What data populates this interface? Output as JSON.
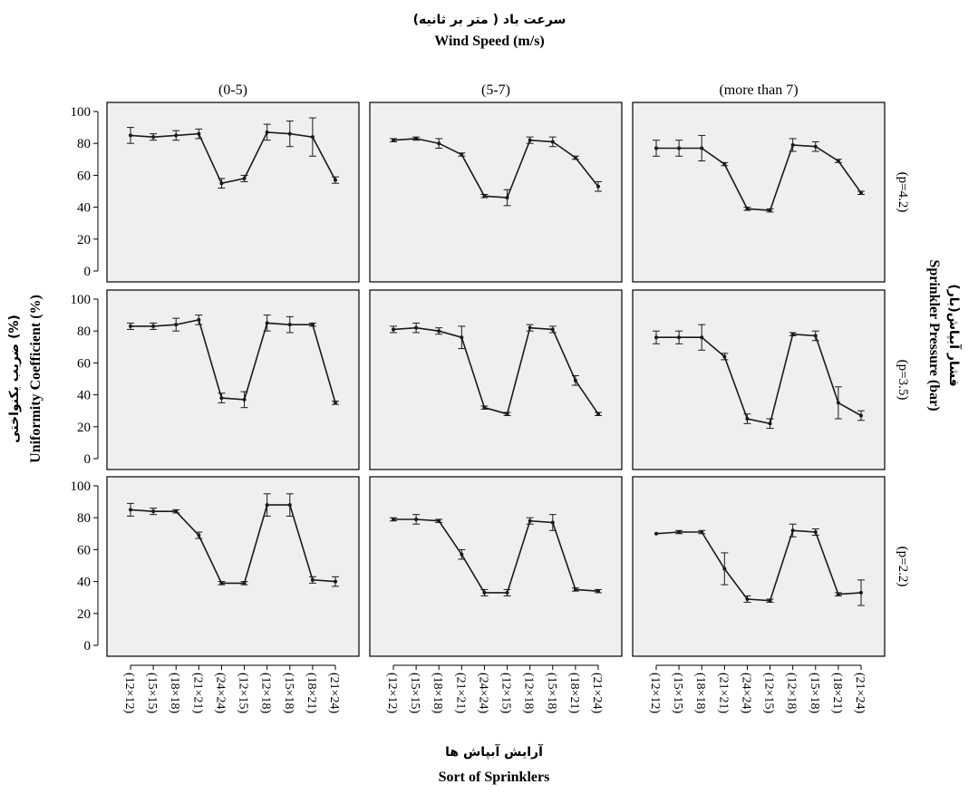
{
  "chart_data": {
    "type": "line",
    "title_fa": "سرعت باد ( متر بر ثانیه)",
    "title": "Wind Speed (m/s)",
    "xlabel_fa": "آرایش آبپاش ها",
    "xlabel": "Sort of Sprinklers",
    "ylabel_fa": "ضریب یکنواختی (%)",
    "ylabel": "Uniformity Coefficient (%)",
    "right_label_fa": "فشار آبپاش(بار)",
    "right_label": "Sprinkler Pressure (bar)",
    "columns": [
      "(0-5)",
      "(5-7)",
      "(more than 7)"
    ],
    "rows": [
      "(p=4.2)",
      "(p=3.5)",
      "(p=2.2)"
    ],
    "categories": [
      "(12×12)",
      "(15×15)",
      "(18×18)",
      "(21×21)",
      "(24×24)",
      "(12×15)",
      "(12×18)",
      "(15×18)",
      "(18×21)",
      "(21×24)"
    ],
    "ylim": [
      0,
      100
    ],
    "yticks": [
      0,
      20,
      40,
      60,
      80,
      100
    ],
    "grid": false,
    "panels": [
      {
        "row": 0,
        "col": 0,
        "values": [
          85,
          84,
          85,
          86,
          55,
          58,
          87,
          86,
          84,
          57
        ],
        "error": [
          5,
          2,
          3,
          3,
          3,
          2,
          5,
          8,
          12,
          2
        ]
      },
      {
        "row": 0,
        "col": 1,
        "values": [
          82,
          83,
          80,
          73,
          47,
          46,
          82,
          81,
          71,
          53
        ],
        "error": [
          1,
          1,
          3,
          1,
          1,
          5,
          2,
          3,
          1,
          3
        ]
      },
      {
        "row": 0,
        "col": 2,
        "values": [
          77,
          77,
          77,
          67,
          39,
          38,
          79,
          78,
          69,
          49
        ],
        "error": [
          5,
          5,
          8,
          1,
          1,
          1,
          4,
          3,
          1,
          1
        ]
      },
      {
        "row": 1,
        "col": 0,
        "values": [
          83,
          83,
          84,
          87,
          38,
          37,
          85,
          84,
          84,
          35
        ],
        "error": [
          2,
          2,
          4,
          3,
          3,
          5,
          5,
          5,
          1,
          1
        ]
      },
      {
        "row": 1,
        "col": 1,
        "values": [
          81,
          82,
          80,
          76,
          32,
          28,
          82,
          81,
          49,
          28
        ],
        "error": [
          2,
          3,
          2,
          7,
          1,
          1,
          2,
          2,
          3,
          1
        ]
      },
      {
        "row": 1,
        "col": 2,
        "values": [
          76,
          76,
          76,
          64,
          25,
          22,
          78,
          77,
          35,
          27
        ],
        "error": [
          4,
          4,
          8,
          2,
          3,
          3,
          1,
          3,
          10,
          3
        ]
      },
      {
        "row": 2,
        "col": 0,
        "values": [
          85,
          84,
          84,
          69,
          39,
          39,
          88,
          88,
          41,
          40
        ],
        "error": [
          4,
          2,
          1,
          2,
          1,
          1,
          7,
          7,
          2,
          3
        ]
      },
      {
        "row": 2,
        "col": 1,
        "values": [
          79,
          79,
          78,
          57,
          33,
          33,
          78,
          77,
          35,
          34
        ],
        "error": [
          1,
          3,
          1,
          3,
          2,
          2,
          2,
          5,
          1,
          1
        ]
      },
      {
        "row": 2,
        "col": 2,
        "values": [
          70,
          71,
          71,
          48,
          29,
          28,
          72,
          71,
          32,
          33
        ],
        "error": [
          0,
          1,
          1,
          10,
          2,
          1,
          4,
          2,
          1,
          8
        ]
      }
    ]
  }
}
